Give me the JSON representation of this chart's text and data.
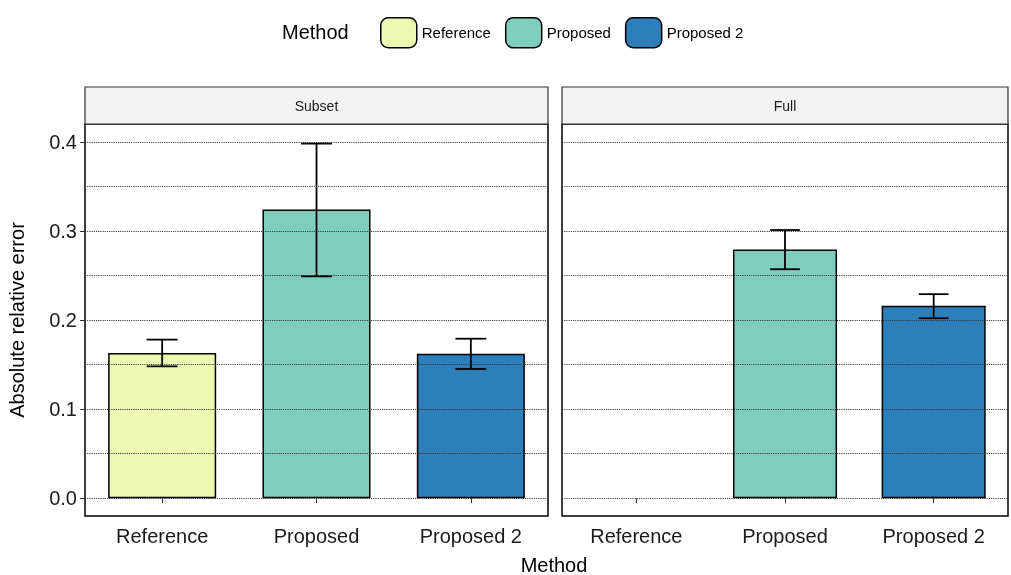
{
  "chart_data": [
    {
      "type": "bar",
      "title": "Subset",
      "xlabel": "Method",
      "ylabel": "Absolute relative error",
      "legend_title": "Method",
      "legend": "top",
      "grid": "y",
      "categories": [
        "Reference",
        "Proposed",
        "Proposed 2"
      ],
      "ylim": [
        -0.02,
        0.42
      ],
      "yticks": [
        {
          "value": 0,
          "label": "0.0"
        },
        {
          "value": 0.05,
          "label": null
        },
        {
          "value": 0.1,
          "label": "0.1"
        },
        {
          "value": 0.15,
          "label": null
        },
        {
          "value": 0.2,
          "label": "0.2"
        },
        {
          "value": 0.25,
          "label": null
        },
        {
          "value": 0.3,
          "label": "0.3"
        },
        {
          "value": 0.35,
          "label": null
        },
        {
          "value": 0.4,
          "label": "0.4"
        }
      ],
      "series": [
        {
          "name": "Reference",
          "color": "#edf8b1",
          "values": [
            0.163,
            null,
            null
          ],
          "errors": [
            [
              0.148,
              0.178
            ],
            null,
            null
          ]
        },
        {
          "name": "Proposed",
          "color": "#7fcdbb",
          "values": [
            null,
            0.324,
            null
          ],
          "errors": [
            null,
            [
              0.249,
              0.398
            ],
            null
          ]
        },
        {
          "name": "Proposed 2",
          "color": "#2c7fb8",
          "values": [
            null,
            null,
            0.162
          ],
          "errors": [
            null,
            null,
            [
              0.145,
              0.179
            ]
          ]
        }
      ]
    },
    {
      "type": "bar",
      "title": "Full",
      "grid": "y",
      "tick_labels": "x",
      "categories": [
        "Reference",
        "Proposed",
        "Proposed 2"
      ],
      "ylim": [
        -0.02,
        0.42
      ],
      "yticks": [
        {
          "value": 0,
          "label": null
        },
        {
          "value": 0.05,
          "label": null
        },
        {
          "value": 0.1,
          "label": null
        },
        {
          "value": 0.15,
          "label": null
        },
        {
          "value": 0.2,
          "label": null
        },
        {
          "value": 0.25,
          "label": null
        },
        {
          "value": 0.3,
          "label": null
        },
        {
          "value": 0.35,
          "label": null
        },
        {
          "value": 0.4,
          "label": null
        }
      ],
      "series": [
        {
          "color": "#edf8b1",
          "values": [
            null,
            null,
            null
          ],
          "errors": [
            null,
            null,
            null
          ]
        },
        {
          "color": "#7fcdbb",
          "values": [
            null,
            0.279,
            null
          ],
          "errors": [
            null,
            [
              0.257,
              0.301
            ],
            null
          ]
        },
        {
          "color": "#2c7fb8",
          "values": [
            null,
            null,
            0.216
          ],
          "errors": [
            null,
            null,
            [
              0.202,
              0.229
            ]
          ]
        }
      ]
    }
  ]
}
